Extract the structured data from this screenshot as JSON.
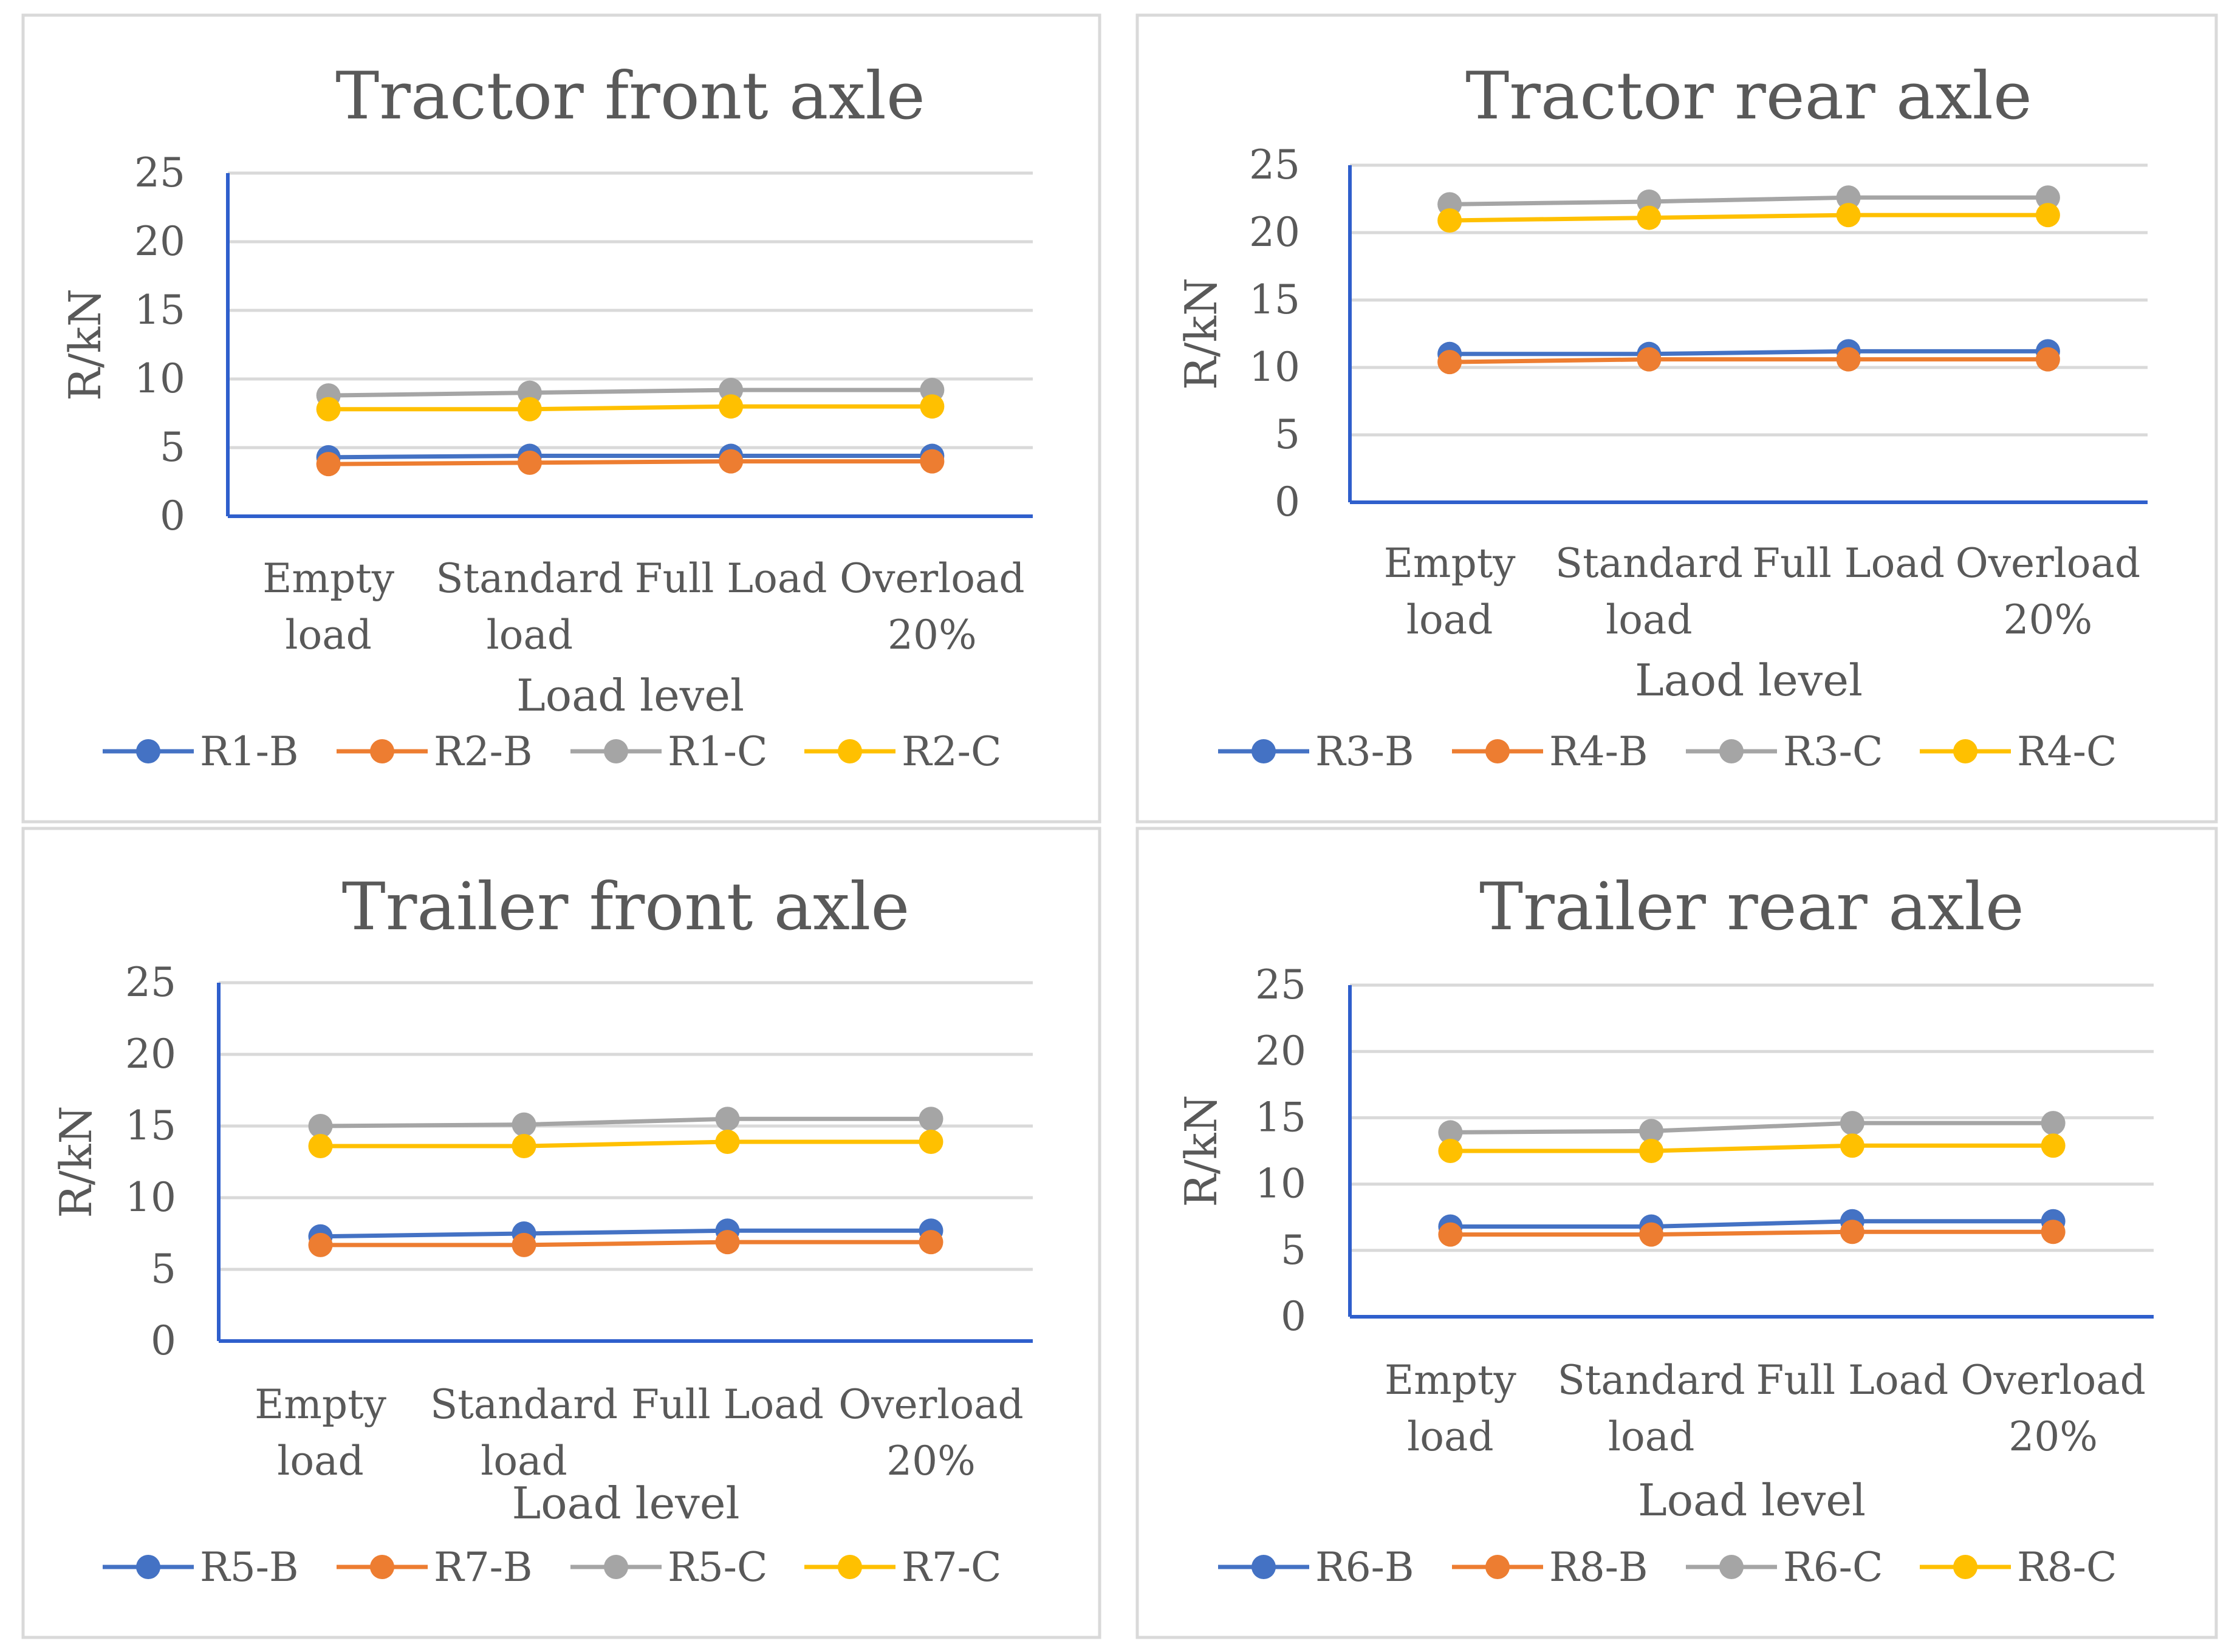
{
  "colors": {
    "s1": "#4472C4",
    "s2": "#ED7D31",
    "s3": "#A5A5A5",
    "s4": "#FFC000"
  },
  "chart_data": [
    {
      "type": "line",
      "title": "Tractor front axle",
      "xlabel": "Load level",
      "ylabel": "R/kN",
      "categories": [
        [
          "Empty",
          "load"
        ],
        [
          "Standard",
          "load"
        ],
        [
          "Full Load",
          ""
        ],
        [
          "Overload",
          "20%"
        ]
      ],
      "ylim": [
        0,
        25
      ],
      "yticks": [
        0,
        5,
        10,
        15,
        20,
        25
      ],
      "grid": true,
      "legend": "bottom",
      "series": [
        {
          "name": "R1-B",
          "values": [
            4.3,
            4.4,
            4.4,
            4.4
          ]
        },
        {
          "name": "R2-B",
          "values": [
            3.8,
            3.9,
            4.0,
            4.0
          ]
        },
        {
          "name": "R1-C",
          "values": [
            8.8,
            9.0,
            9.2,
            9.2
          ]
        },
        {
          "name": "R2-C",
          "values": [
            7.8,
            7.8,
            8.0,
            8.0
          ]
        }
      ]
    },
    {
      "type": "line",
      "title": "Tractor rear axle",
      "xlabel": "Laod level",
      "ylabel": "R/kN",
      "categories": [
        [
          "Empty",
          "load"
        ],
        [
          "Standard",
          "load"
        ],
        [
          "Full Load",
          ""
        ],
        [
          "Overload",
          "20%"
        ]
      ],
      "ylim": [
        0,
        25
      ],
      "yticks": [
        0,
        5,
        10,
        15,
        20,
        25
      ],
      "grid": true,
      "legend": "bottom",
      "series": [
        {
          "name": "R3-B",
          "values": [
            11.0,
            11.0,
            11.2,
            11.2
          ]
        },
        {
          "name": "R4-B",
          "values": [
            10.4,
            10.6,
            10.6,
            10.6
          ]
        },
        {
          "name": "R3-C",
          "values": [
            22.1,
            22.3,
            22.6,
            22.6
          ]
        },
        {
          "name": "R4-C",
          "values": [
            20.9,
            21.1,
            21.3,
            21.3
          ]
        }
      ]
    },
    {
      "type": "line",
      "title": "Trailer front axle",
      "xlabel": "Load level",
      "ylabel": "R/kN",
      "categories": [
        [
          "Empty",
          "load"
        ],
        [
          "Standard",
          "load"
        ],
        [
          "Full Load",
          ""
        ],
        [
          "Overload",
          "20%"
        ]
      ],
      "ylim": [
        0,
        25
      ],
      "yticks": [
        0,
        5,
        10,
        15,
        20,
        25
      ],
      "grid": true,
      "legend": "bottom",
      "series": [
        {
          "name": "R5-B",
          "values": [
            7.3,
            7.5,
            7.7,
            7.7
          ]
        },
        {
          "name": "R7-B",
          "values": [
            6.7,
            6.7,
            6.9,
            6.9
          ]
        },
        {
          "name": "R5-C",
          "values": [
            15.0,
            15.1,
            15.5,
            15.5
          ]
        },
        {
          "name": "R7-C",
          "values": [
            13.6,
            13.6,
            13.9,
            13.9
          ]
        }
      ]
    },
    {
      "type": "line",
      "title": "Trailer rear axle",
      "xlabel": "Load level",
      "ylabel": "R/kN",
      "categories": [
        [
          "Empty",
          "load"
        ],
        [
          "Standard",
          "load"
        ],
        [
          "Full Load",
          ""
        ],
        [
          "Overload",
          "20%"
        ]
      ],
      "ylim": [
        0,
        25
      ],
      "yticks": [
        0,
        5,
        10,
        15,
        20,
        25
      ],
      "grid": true,
      "legend": "bottom",
      "series": [
        {
          "name": "R6-B",
          "values": [
            6.8,
            6.8,
            7.2,
            7.2
          ]
        },
        {
          "name": "R8-B",
          "values": [
            6.2,
            6.2,
            6.4,
            6.4
          ]
        },
        {
          "name": "R6-C",
          "values": [
            13.9,
            14.0,
            14.6,
            14.6
          ]
        },
        {
          "name": "R8-C",
          "values": [
            12.5,
            12.5,
            12.9,
            12.9
          ]
        }
      ]
    }
  ]
}
